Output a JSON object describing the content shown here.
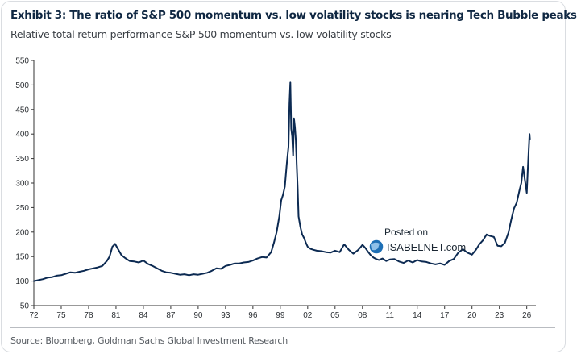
{
  "header": {
    "title": "Exhibit 3: The ratio of S&P 500 momentum vs. low volatility stocks is nearing Tech Bubble peaks",
    "subtitle": "Relative total return performance S&P 500 momentum vs. low volatility stocks"
  },
  "footer": {
    "source": "Source: Bloomberg, Goldman Sachs Global Investment Research"
  },
  "watermark": {
    "line1": "Posted on",
    "line2": "ISABELNET.com"
  },
  "colors": {
    "line": "#0c2a52",
    "axis": "#333333",
    "title": "#0f2742"
  },
  "chart_data": {
    "type": "line",
    "title": "Exhibit 3: The ratio of S&P 500 momentum vs. low volatility stocks is nearing Tech Bubble peaks",
    "subtitle": "Relative total return performance S&P 500 momentum vs. low volatility stocks",
    "xlabel": "",
    "ylabel": "",
    "xlim": [
      1972,
      2027
    ],
    "ylim": [
      50,
      550
    ],
    "yticks": [
      50,
      100,
      150,
      200,
      250,
      300,
      350,
      400,
      450,
      500,
      550
    ],
    "xticks": [
      {
        "value": 1972,
        "label": "72"
      },
      {
        "value": 1975,
        "label": "75"
      },
      {
        "value": 1978,
        "label": "78"
      },
      {
        "value": 1981,
        "label": "81"
      },
      {
        "value": 1984,
        "label": "84"
      },
      {
        "value": 1987,
        "label": "87"
      },
      {
        "value": 1990,
        "label": "90"
      },
      {
        "value": 1993,
        "label": "93"
      },
      {
        "value": 1996,
        "label": "96"
      },
      {
        "value": 1999,
        "label": "99"
      },
      {
        "value": 2002,
        "label": "02"
      },
      {
        "value": 2005,
        "label": "05"
      },
      {
        "value": 2008,
        "label": "08"
      },
      {
        "value": 2011,
        "label": "11"
      },
      {
        "value": 2014,
        "label": "14"
      },
      {
        "value": 2017,
        "label": "17"
      },
      {
        "value": 2020,
        "label": "20"
      },
      {
        "value": 2023,
        "label": "23"
      },
      {
        "value": 2026,
        "label": "26"
      }
    ],
    "grid": false,
    "legend": "none",
    "series": [
      {
        "x": [
          1972.0,
          1972.5,
          1973.0,
          1973.5,
          1974.0,
          1974.5,
          1975.0,
          1975.5,
          1976.0,
          1976.5,
          1977.0,
          1977.5,
          1978.0,
          1978.5,
          1979.0,
          1979.5,
          1979.8,
          1980.0,
          1980.3,
          1980.6,
          1980.9,
          1981.2,
          1981.6,
          1982.0,
          1982.5,
          1983.0,
          1983.5,
          1984.0,
          1984.5,
          1985.0,
          1985.5,
          1986.0,
          1986.5,
          1987.0,
          1987.5,
          1988.0,
          1988.5,
          1989.0,
          1989.5,
          1990.0,
          1990.5,
          1991.0,
          1991.5,
          1992.0,
          1992.5,
          1993.0,
          1993.5,
          1994.0,
          1994.5,
          1995.0,
          1995.5,
          1996.0,
          1996.5,
          1997.0,
          1997.5,
          1998.0,
          1998.3,
          1998.6,
          1998.9,
          1999.1,
          1999.3,
          1999.5,
          1999.7,
          1999.9,
          2000.0,
          2000.1,
          2000.2,
          2000.3,
          2000.4,
          2000.5,
          2000.6,
          2000.7,
          2000.8,
          2000.9,
          2001.0,
          2001.2,
          2001.4,
          2001.6,
          2001.8,
          2002.0,
          2002.3,
          2002.6,
          2003.0,
          2003.5,
          2004.0,
          2004.5,
          2005.0,
          2005.5,
          2006.0,
          2006.5,
          2007.0,
          2007.5,
          2007.8,
          2008.0,
          2008.3,
          2008.6,
          2008.9,
          2009.2,
          2009.5,
          2009.8,
          2010.2,
          2010.6,
          2011.0,
          2011.5,
          2012.0,
          2012.5,
          2013.0,
          2013.5,
          2014.0,
          2014.5,
          2015.0,
          2015.5,
          2016.0,
          2016.5,
          2017.0,
          2017.5,
          2018.0,
          2018.5,
          2019.0,
          2019.5,
          2020.0,
          2020.4,
          2020.8,
          2021.2,
          2021.6,
          2022.0,
          2022.4,
          2022.8,
          2023.2,
          2023.6,
          2024.0,
          2024.3,
          2024.6,
          2024.9,
          2025.2,
          2025.4,
          2025.6,
          2025.8,
          2026.0,
          2026.1,
          2026.2,
          2026.3,
          2026.35
        ],
        "y": [
          100,
          102,
          104,
          107,
          108,
          111,
          112,
          115,
          118,
          117,
          119,
          121,
          124,
          126,
          128,
          131,
          137,
          141,
          150,
          170,
          176,
          166,
          153,
          147,
          141,
          140,
          138,
          142,
          135,
          131,
          126,
          121,
          118,
          117,
          115,
          113,
          114,
          112,
          114,
          113,
          115,
          117,
          121,
          126,
          125,
          131,
          133,
          136,
          136,
          138,
          139,
          142,
          146,
          149,
          148,
          159,
          178,
          200,
          233,
          265,
          276,
          293,
          338,
          374,
          462,
          505,
          411,
          395,
          356,
          432,
          414,
          388,
          338,
          290,
          232,
          210,
          195,
          188,
          178,
          170,
          166,
          164,
          162,
          161,
          159,
          158,
          162,
          159,
          175,
          164,
          156,
          163,
          169,
          174,
          168,
          160,
          153,
          148,
          145,
          143,
          146,
          141,
          144,
          145,
          140,
          137,
          142,
          138,
          143,
          140,
          139,
          136,
          134,
          136,
          133,
          141,
          145,
          158,
          165,
          158,
          154,
          163,
          175,
          183,
          195,
          192,
          190,
          172,
          171,
          178,
          199,
          225,
          248,
          260,
          285,
          300,
          333,
          306,
          280,
          322,
          360,
          400,
          390
        ]
      }
    ]
  }
}
